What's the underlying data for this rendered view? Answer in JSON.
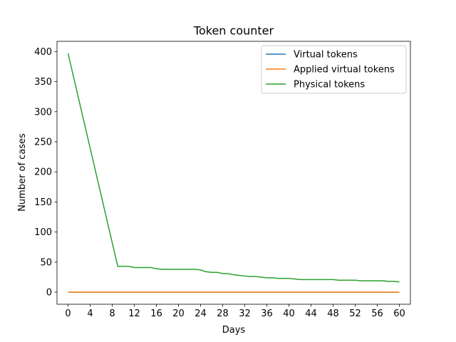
{
  "chart_data": {
    "type": "line",
    "title": "Token counter",
    "xlabel": "Days",
    "ylabel": "Number of cases",
    "xlim": [
      -2,
      62
    ],
    "ylim": [
      -20,
      417
    ],
    "xticks": [
      0,
      4,
      8,
      12,
      16,
      20,
      24,
      28,
      32,
      36,
      40,
      44,
      48,
      52,
      56,
      60
    ],
    "yticks": [
      0,
      50,
      100,
      150,
      200,
      250,
      300,
      350,
      400
    ],
    "grid": false,
    "legend_position": "upper right",
    "series": [
      {
        "name": "Virtual tokens",
        "color": "#1f77b4",
        "x": [
          0,
          60
        ],
        "y": [
          0,
          0
        ]
      },
      {
        "name": "Applied virtual tokens",
        "color": "#ff7f0e",
        "x": [
          0,
          60
        ],
        "y": [
          0,
          0
        ]
      },
      {
        "name": "Physical tokens",
        "color": "#2ca02c",
        "x": [
          0,
          9,
          10,
          11,
          12,
          13,
          14,
          15,
          16,
          17,
          18,
          19,
          20,
          21,
          22,
          23,
          24,
          25,
          26,
          27,
          28,
          29,
          30,
          31,
          32,
          33,
          34,
          35,
          36,
          37,
          38,
          39,
          40,
          41,
          42,
          43,
          44,
          45,
          46,
          47,
          48,
          49,
          50,
          51,
          52,
          53,
          54,
          55,
          56,
          57,
          58,
          59,
          60
        ],
        "y": [
          397,
          43,
          43,
          43,
          41,
          41,
          41,
          41,
          39,
          38,
          38,
          38,
          38,
          38,
          38,
          38,
          37,
          34,
          33,
          33,
          31,
          31,
          29,
          28,
          27,
          26,
          26,
          25,
          24,
          24,
          23,
          23,
          23,
          22,
          21,
          21,
          21,
          21,
          21,
          21,
          21,
          20,
          20,
          20,
          20,
          19,
          19,
          19,
          19,
          19,
          18,
          18,
          17
        ]
      }
    ]
  }
}
